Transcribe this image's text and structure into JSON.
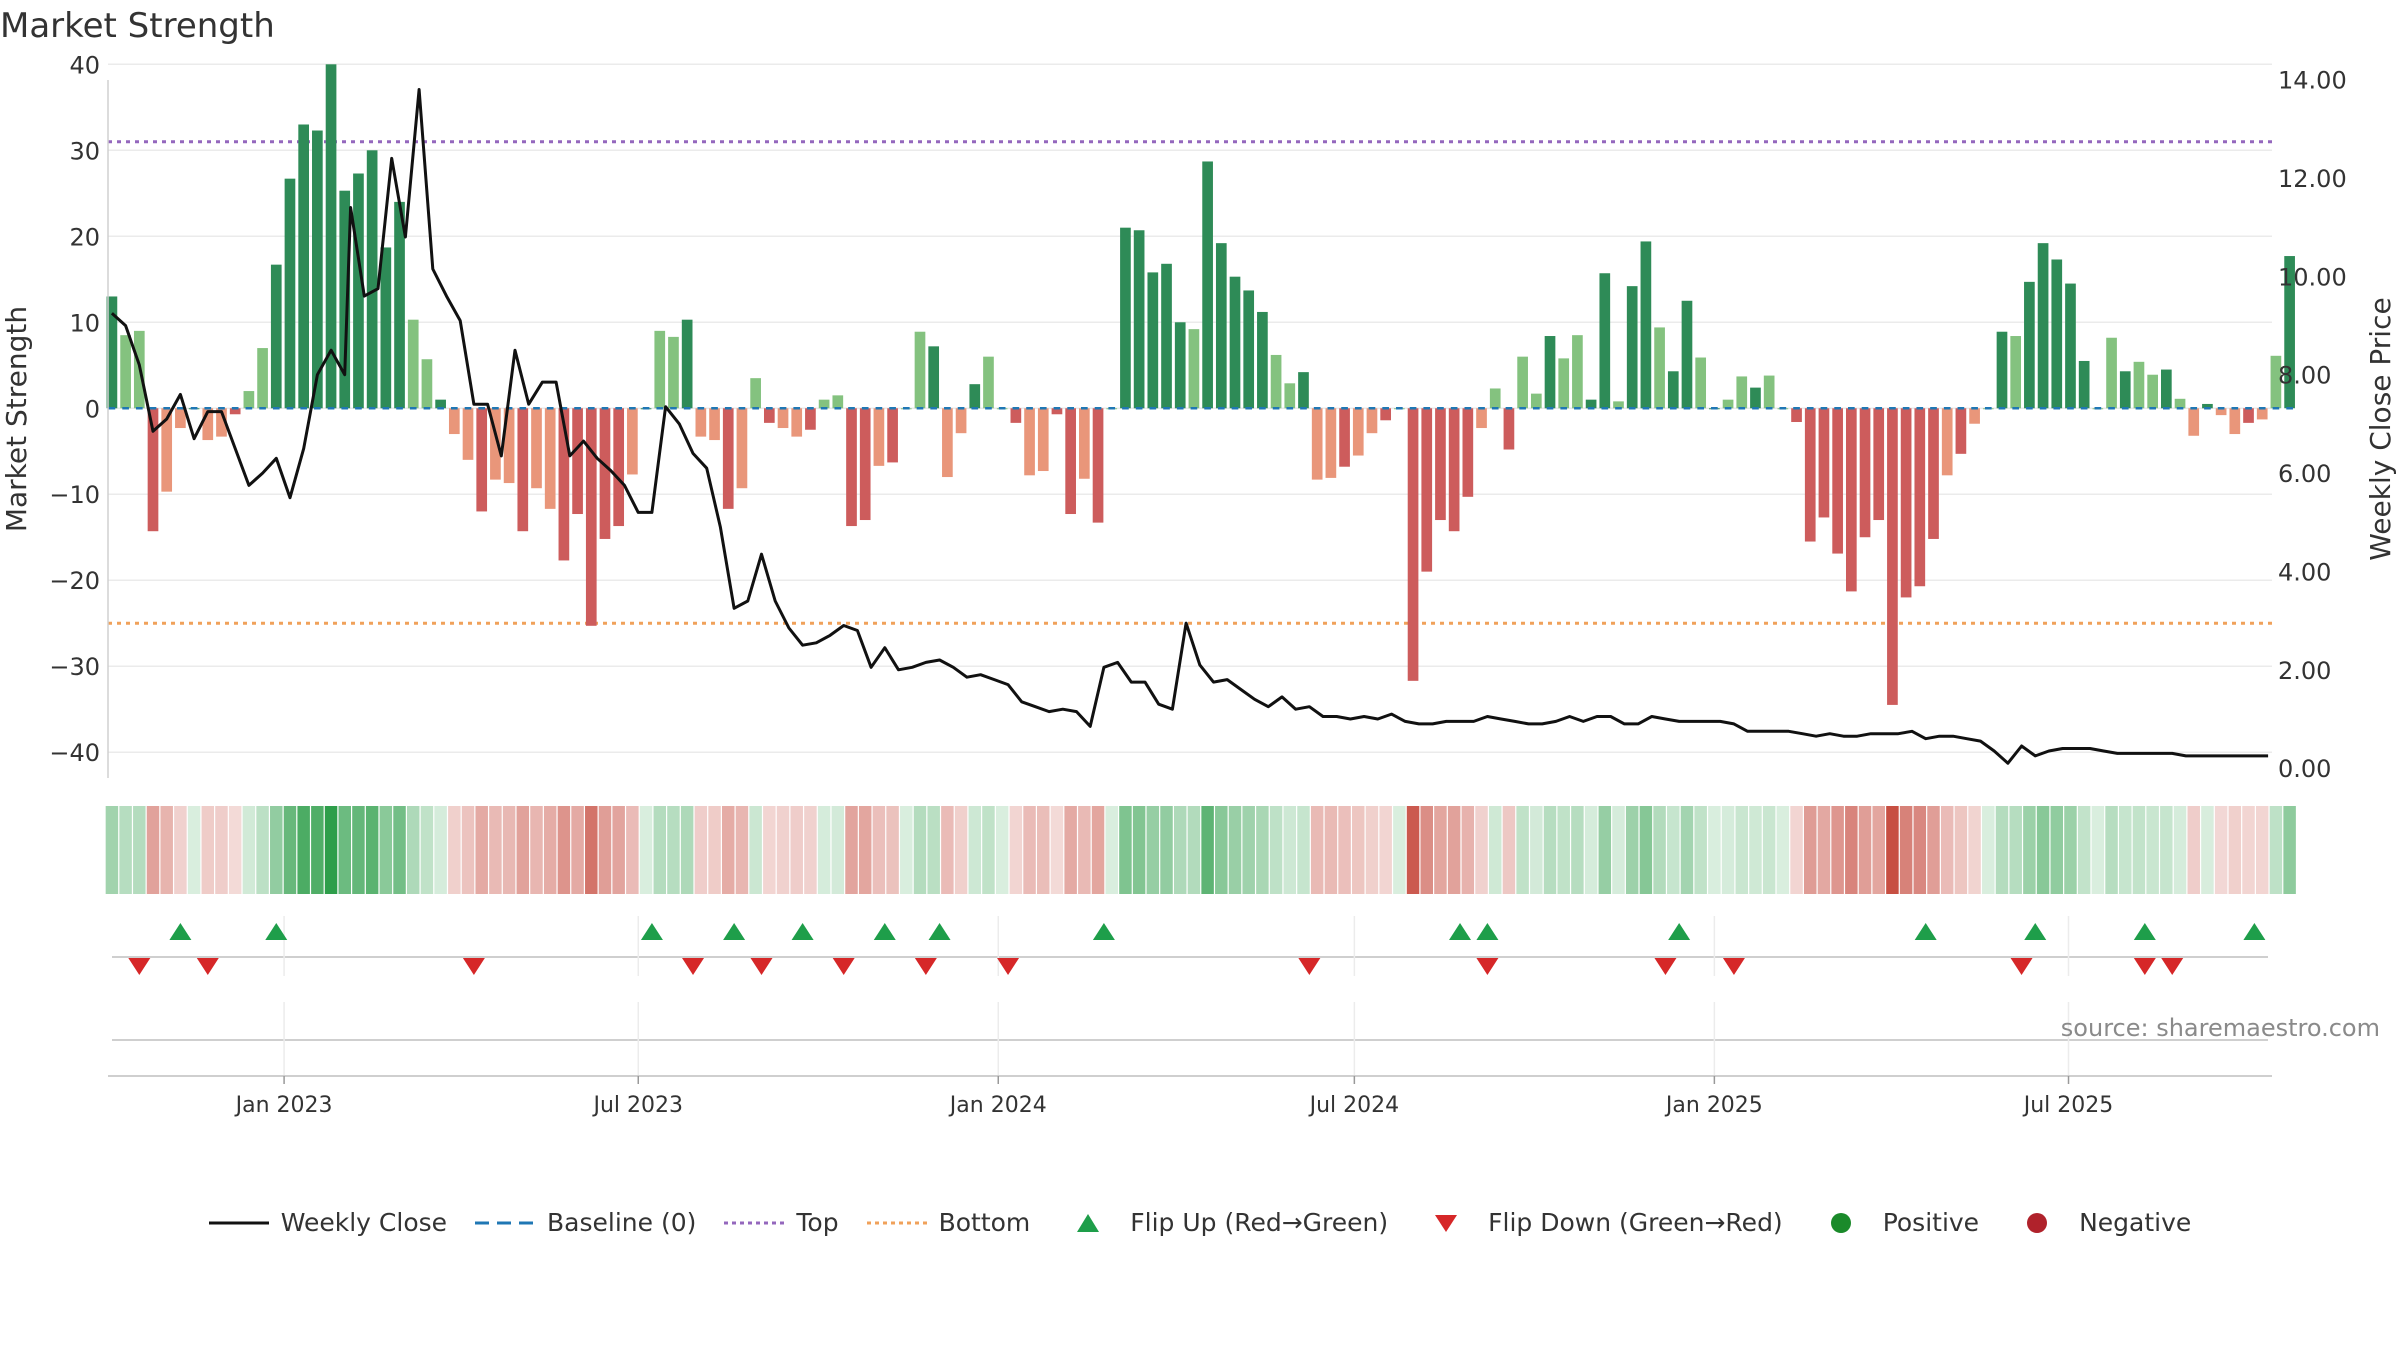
{
  "title": "Market Strength",
  "source": "source: sharemaestro.com",
  "legend": [
    {
      "label": "Weekly Close",
      "symbol": "line",
      "color": "#111111"
    },
    {
      "label": "Baseline (0)",
      "symbol": "dash",
      "color": "#1f77b4"
    },
    {
      "label": "Top",
      "symbol": "dot",
      "color": "#9467bd"
    },
    {
      "label": "Bottom",
      "symbol": "dot",
      "color": "#f0a15a"
    },
    {
      "label": "Flip Up (Red→Green)",
      "symbol": "tri-up",
      "color": "#1e9e4a"
    },
    {
      "label": "Flip Down (Green→Red)",
      "symbol": "tri-down",
      "color": "#d62728"
    },
    {
      "label": "Positive",
      "symbol": "circle",
      "color": "#1a8a2a"
    },
    {
      "label": "Negative",
      "symbol": "circle",
      "color": "#b0222b"
    }
  ],
  "colors": {
    "pos_dark": "#2e8b57",
    "pos_light": "#84c27f",
    "neg_dark": "#cd5c5c",
    "neg_light": "#e9967a",
    "close": "#111111",
    "baseline": "#1f77b4",
    "top": "#9467bd",
    "bottom": "#f0a15a",
    "flip_up": "#1e9e4a",
    "flip_down": "#d62728"
  },
  "chart_data": {
    "type": "bar",
    "title": "Market Strength",
    "ylabel": "Market Strength",
    "y2label": "Weekly Close Price",
    "ylim": [
      -43,
      40.5
    ],
    "y2lim": [
      -0.2,
      14.4
    ],
    "yticks": [
      -40,
      -30,
      -20,
      -10,
      0,
      10,
      20,
      30,
      40
    ],
    "yticklabels": [
      "−40",
      "−30",
      "−20",
      "−10",
      "0",
      "10",
      "20",
      "30",
      "40"
    ],
    "y2ticks": [
      0,
      2,
      4,
      6,
      8,
      10,
      12,
      14
    ],
    "y2ticklabels": [
      "0.00",
      "2.00",
      "4.00",
      "6.00",
      "8.00",
      "10.00",
      "12.00",
      "14.00"
    ],
    "xlim": [
      "2022-10-03",
      "2025-10-13"
    ],
    "xticks": [
      "2023-01-01",
      "2023-07-01",
      "2024-01-01",
      "2024-07-01",
      "2025-01-01",
      "2025-07-01"
    ],
    "xticklabels": [
      "Jan 2023",
      "Jul 2023",
      "Jan 2024",
      "Jul 2024",
      "Jan 2025",
      "Jul 2025"
    ],
    "top_line": 31,
    "bottom_line": -25,
    "baseline": 0,
    "grid": true,
    "legend_position": "bottom",
    "series": [
      {
        "name": "Market Strength",
        "type": "bar",
        "start": "2022-10-05",
        "step_days": 7,
        "values": [
          13,
          8.5,
          9,
          -14.3,
          -9.7,
          -2.3,
          0,
          -3.7,
          -3.3,
          -0.7,
          2,
          7,
          16.7,
          26.7,
          33,
          32.3,
          40,
          25.3,
          27.3,
          30,
          18.7,
          24,
          10.3,
          5.7,
          1,
          -3,
          -6,
          -12,
          -8.3,
          -8.7,
          -14.3,
          -9.3,
          -11.7,
          -17.7,
          -12.3,
          -25.3,
          -15.2,
          -13.7,
          -7.7,
          0,
          9,
          8.3,
          10.3,
          -3.3,
          -3.7,
          -11.7,
          -9.3,
          3.5,
          -1.7,
          -2.3,
          -3.3,
          -2.5,
          1,
          1.5,
          -13.7,
          -13,
          -6.7,
          -6.3,
          0,
          8.9,
          7.2,
          -8,
          -2.9,
          2.8,
          6,
          0,
          -1.7,
          -7.8,
          -7.3,
          -0.7,
          -12.3,
          -8.2,
          -13.3,
          0,
          21,
          20.7,
          15.8,
          16.8,
          10,
          9.2,
          28.7,
          19.2,
          15.3,
          13.7,
          11.2,
          6.2,
          2.9,
          4.2,
          -8.3,
          -8.1,
          -6.8,
          -5.5,
          -2.9,
          -1.4,
          0,
          -31.7,
          -19,
          -13,
          -14.3,
          -10.3,
          -2.3,
          2.3,
          -4.8,
          6,
          1.7,
          8.4,
          5.8,
          8.5,
          1,
          15.7,
          0.8,
          14.2,
          19.4,
          9.4,
          4.3,
          12.5,
          5.9,
          0,
          1,
          3.7,
          2.4,
          3.8,
          0,
          -1.6,
          -15.5,
          -12.7,
          -16.9,
          -21.3,
          -15,
          -13,
          -34.5,
          -22,
          -20.7,
          -15.2,
          -7.8,
          -5.3,
          -1.8,
          0,
          8.9,
          8.4,
          14.7,
          19.2,
          17.3,
          14.5,
          5.5,
          0,
          8.2,
          4.3,
          5.4,
          3.9,
          4.5,
          1.1,
          -3.2,
          0.5,
          -0.8,
          -3,
          -1.7,
          -1.3,
          6.1,
          17.7
        ]
      },
      {
        "name": "Weekly Close",
        "type": "line",
        "axis": "right",
        "points": [
          [
            "2022-10-05",
            9.25
          ],
          [
            "2022-10-12",
            9.0
          ],
          [
            "2022-10-19",
            8.2
          ],
          [
            "2022-10-26",
            6.85
          ],
          [
            "2022-11-02",
            7.1
          ],
          [
            "2022-11-09",
            7.6
          ],
          [
            "2022-11-16",
            6.7
          ],
          [
            "2022-11-23",
            7.25
          ],
          [
            "2022-11-30",
            7.25
          ],
          [
            "2022-12-07",
            6.5
          ],
          [
            "2022-12-14",
            5.75
          ],
          [
            "2022-12-21",
            6.0
          ],
          [
            "2022-12-28",
            6.3
          ],
          [
            "2023-01-04",
            5.5
          ],
          [
            "2023-01-11",
            6.5
          ],
          [
            "2023-01-18",
            8.0
          ],
          [
            "2023-01-25",
            8.5
          ],
          [
            "2023-02-01",
            8.0
          ],
          [
            "2023-02-04",
            11.4
          ],
          [
            "2023-02-11",
            9.6
          ],
          [
            "2023-02-18",
            9.75
          ],
          [
            "2023-02-25",
            12.4
          ],
          [
            "2023-03-04",
            10.8
          ],
          [
            "2023-03-11",
            13.8
          ],
          [
            "2023-03-18",
            10.15
          ],
          [
            "2023-03-25",
            9.6
          ],
          [
            "2023-04-01",
            9.1
          ],
          [
            "2023-04-08",
            7.4
          ],
          [
            "2023-04-15",
            7.4
          ],
          [
            "2023-04-22",
            6.35
          ],
          [
            "2023-04-29",
            8.5
          ],
          [
            "2023-05-06",
            7.4
          ],
          [
            "2023-05-13",
            7.85
          ],
          [
            "2023-05-20",
            7.85
          ],
          [
            "2023-05-27",
            6.35
          ],
          [
            "2023-06-03",
            6.65
          ],
          [
            "2023-06-10",
            6.3
          ],
          [
            "2023-06-17",
            6.05
          ],
          [
            "2023-06-24",
            5.75
          ],
          [
            "2023-07-01",
            5.2
          ],
          [
            "2023-07-08",
            5.2
          ],
          [
            "2023-07-15",
            7.35
          ],
          [
            "2023-07-22",
            7.0
          ],
          [
            "2023-07-29",
            6.4
          ],
          [
            "2023-08-05",
            6.1
          ],
          [
            "2023-08-12",
            4.9
          ],
          [
            "2023-08-19",
            3.25
          ],
          [
            "2023-08-26",
            3.4
          ],
          [
            "2023-09-02",
            4.35
          ],
          [
            "2023-09-09",
            3.4
          ],
          [
            "2023-09-16",
            2.85
          ],
          [
            "2023-09-23",
            2.5
          ],
          [
            "2023-09-30",
            2.55
          ],
          [
            "2023-10-07",
            2.7
          ],
          [
            "2023-10-14",
            2.9
          ],
          [
            "2023-10-21",
            2.8
          ],
          [
            "2023-10-28",
            2.05
          ],
          [
            "2023-11-04",
            2.45
          ],
          [
            "2023-11-11",
            2.0
          ],
          [
            "2023-11-18",
            2.05
          ],
          [
            "2023-11-25",
            2.15
          ],
          [
            "2023-12-02",
            2.2
          ],
          [
            "2023-12-09",
            2.05
          ],
          [
            "2023-12-16",
            1.85
          ],
          [
            "2023-12-23",
            1.9
          ],
          [
            "2023-12-30",
            1.8
          ],
          [
            "2024-01-06",
            1.7
          ],
          [
            "2024-01-13",
            1.35
          ],
          [
            "2024-01-20",
            1.25
          ],
          [
            "2024-01-27",
            1.15
          ],
          [
            "2024-02-03",
            1.2
          ],
          [
            "2024-02-10",
            1.15
          ],
          [
            "2024-02-17",
            0.85
          ],
          [
            "2024-02-24",
            2.05
          ],
          [
            "2024-03-02",
            2.15
          ],
          [
            "2024-03-09",
            1.75
          ],
          [
            "2024-03-16",
            1.75
          ],
          [
            "2024-03-23",
            1.3
          ],
          [
            "2024-03-30",
            1.2
          ],
          [
            "2024-04-06",
            2.95
          ],
          [
            "2024-04-13",
            2.1
          ],
          [
            "2024-04-20",
            1.75
          ],
          [
            "2024-04-27",
            1.8
          ],
          [
            "2024-05-04",
            1.6
          ],
          [
            "2024-05-11",
            1.4
          ],
          [
            "2024-05-18",
            1.25
          ],
          [
            "2024-05-25",
            1.45
          ],
          [
            "2024-06-01",
            1.2
          ],
          [
            "2024-06-08",
            1.25
          ],
          [
            "2024-06-15",
            1.05
          ],
          [
            "2024-06-22",
            1.05
          ],
          [
            "2024-06-29",
            1.0
          ],
          [
            "2024-07-06",
            1.05
          ],
          [
            "2024-07-13",
            1.0
          ],
          [
            "2024-07-20",
            1.1
          ],
          [
            "2024-07-27",
            0.95
          ],
          [
            "2024-08-03",
            0.9
          ],
          [
            "2024-08-10",
            0.9
          ],
          [
            "2024-08-17",
            0.95
          ],
          [
            "2024-08-24",
            0.95
          ],
          [
            "2024-08-31",
            0.95
          ],
          [
            "2024-09-07",
            1.05
          ],
          [
            "2024-09-14",
            1.0
          ],
          [
            "2024-09-21",
            0.95
          ],
          [
            "2024-09-28",
            0.9
          ],
          [
            "2024-10-05",
            0.9
          ],
          [
            "2024-10-12",
            0.95
          ],
          [
            "2024-10-19",
            1.05
          ],
          [
            "2024-10-26",
            0.95
          ],
          [
            "2024-11-02",
            1.05
          ],
          [
            "2024-11-09",
            1.05
          ],
          [
            "2024-11-16",
            0.9
          ],
          [
            "2024-11-23",
            0.9
          ],
          [
            "2024-11-30",
            1.05
          ],
          [
            "2024-12-07",
            1.0
          ],
          [
            "2024-12-14",
            0.95
          ],
          [
            "2024-12-21",
            0.95
          ],
          [
            "2024-12-28",
            0.95
          ],
          [
            "2025-01-04",
            0.95
          ],
          [
            "2025-01-11",
            0.9
          ],
          [
            "2025-01-18",
            0.75
          ],
          [
            "2025-01-25",
            0.75
          ],
          [
            "2025-02-01",
            0.75
          ],
          [
            "2025-02-08",
            0.75
          ],
          [
            "2025-02-15",
            0.7
          ],
          [
            "2025-02-22",
            0.65
          ],
          [
            "2025-03-01",
            0.7
          ],
          [
            "2025-03-08",
            0.65
          ],
          [
            "2025-03-15",
            0.65
          ],
          [
            "2025-03-22",
            0.7
          ],
          [
            "2025-03-29",
            0.7
          ],
          [
            "2025-04-05",
            0.7
          ],
          [
            "2025-04-12",
            0.75
          ],
          [
            "2025-04-19",
            0.6
          ],
          [
            "2025-04-26",
            0.65
          ],
          [
            "2025-05-03",
            0.65
          ],
          [
            "2025-05-10",
            0.6
          ],
          [
            "2025-05-17",
            0.55
          ],
          [
            "2025-05-24",
            0.35
          ],
          [
            "2025-05-31",
            0.1
          ],
          [
            "2025-06-07",
            0.45
          ],
          [
            "2025-06-14",
            0.25
          ],
          [
            "2025-06-21",
            0.35
          ],
          [
            "2025-06-28",
            0.4
          ],
          [
            "2025-07-05",
            0.4
          ],
          [
            "2025-07-12",
            0.4
          ],
          [
            "2025-07-19",
            0.35
          ],
          [
            "2025-07-26",
            0.3
          ],
          [
            "2025-08-02",
            0.3
          ],
          [
            "2025-08-09",
            0.3
          ],
          [
            "2025-08-16",
            0.3
          ],
          [
            "2025-08-23",
            0.3
          ],
          [
            "2025-08-30",
            0.25
          ],
          [
            "2025-09-06",
            0.25
          ],
          [
            "2025-09-13",
            0.25
          ],
          [
            "2025-09-20",
            0.25
          ],
          [
            "2025-09-27",
            0.25
          ],
          [
            "2025-10-04",
            0.25
          ],
          [
            "2025-10-11",
            0.25
          ]
        ]
      }
    ],
    "flip_up": [
      "2022-11-09",
      "2022-12-28",
      "2023-07-08",
      "2023-08-19",
      "2023-09-23",
      "2023-11-04",
      "2023-12-02",
      "2024-02-24",
      "2024-08-24",
      "2024-09-07",
      "2024-12-14",
      "2025-04-19",
      "2025-06-14",
      "2025-08-09",
      "2025-10-04"
    ],
    "flip_down": [
      "2022-10-19",
      "2022-11-23",
      "2023-04-08",
      "2023-07-29",
      "2023-09-02",
      "2023-10-14",
      "2023-11-25",
      "2024-01-06",
      "2024-06-08",
      "2024-09-07",
      "2024-12-07",
      "2025-01-11",
      "2025-06-07",
      "2025-08-09",
      "2025-08-23"
    ]
  }
}
